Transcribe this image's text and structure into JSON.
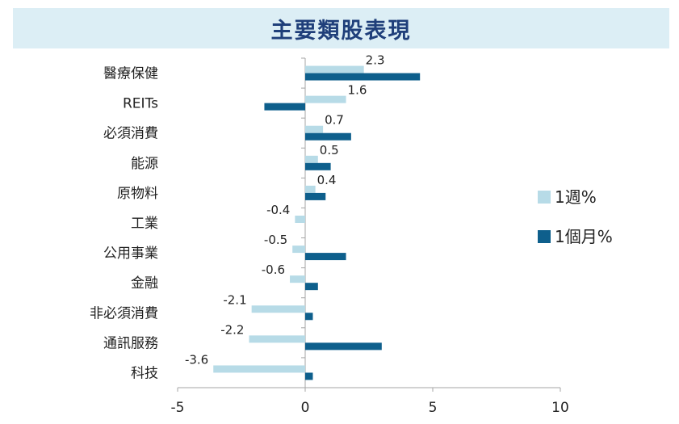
{
  "title": "主要類股表現",
  "chart_data": {
    "type": "bar",
    "orientation": "horizontal",
    "categories": [
      "醫療保健",
      "REITs",
      "必須消費",
      "能源",
      "原物料",
      "工業",
      "公用事業",
      "金融",
      "非必須消費",
      "通訊服務",
      "科技"
    ],
    "series": [
      {
        "name": "1週%",
        "color": "#b7dbe7",
        "values": [
          2.3,
          1.6,
          0.7,
          0.5,
          0.4,
          -0.4,
          -0.5,
          -0.6,
          -2.1,
          -2.2,
          -3.6
        ],
        "labeled": true
      },
      {
        "name": "1個月%",
        "color": "#0e5f8c",
        "values": [
          4.5,
          -1.6,
          1.8,
          1.0,
          0.8,
          0.0,
          1.6,
          0.5,
          0.3,
          3.0,
          0.3
        ],
        "labeled": false
      }
    ],
    "xlim": [
      -5,
      10
    ],
    "xticks": [
      "-5",
      "0",
      "5",
      "10"
    ],
    "legend_position": "right",
    "grid": false
  }
}
